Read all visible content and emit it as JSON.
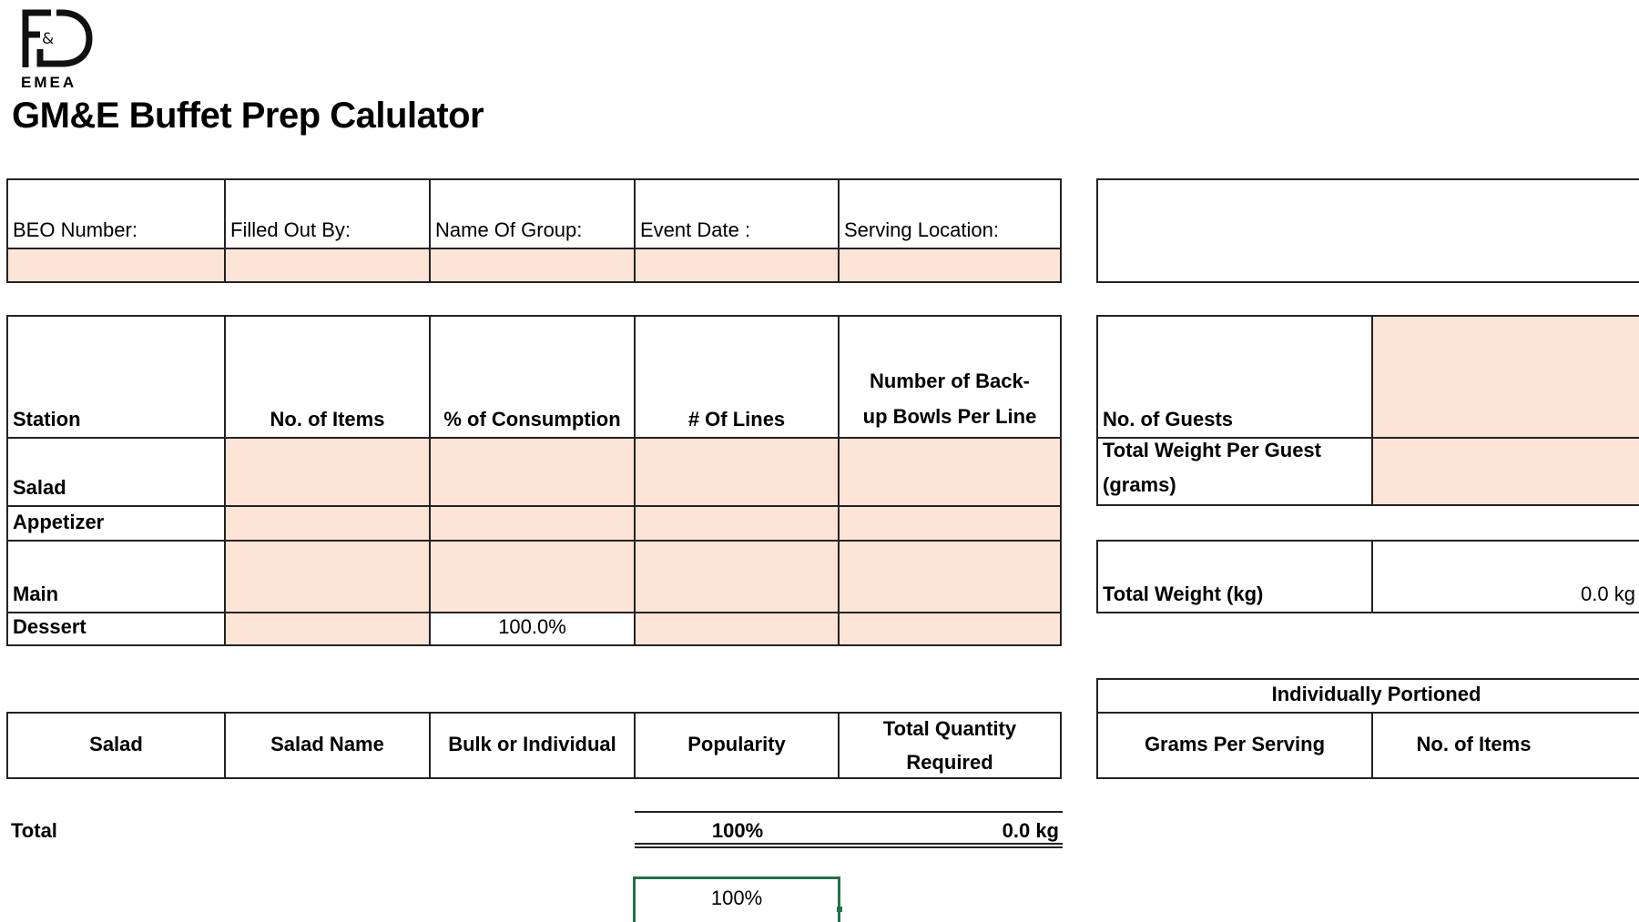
{
  "logo": {
    "text": "F&D",
    "sub": "EMEA"
  },
  "title": "GM&E Buffet Prep Calulator",
  "event_info": {
    "labels": [
      "BEO Number:",
      "Filled Out By:",
      "Name Of Group:",
      "Event Date :",
      "Serving Location:"
    ],
    "values": [
      "",
      "",
      "",
      "",
      ""
    ]
  },
  "stations": {
    "headers": [
      "Station",
      "No. of Items",
      "% of Consumption",
      "# Of Lines",
      "Number of Back-up Bowls Per Line"
    ],
    "rows": [
      {
        "station": "Salad",
        "items": "",
        "consumption": "",
        "lines": "",
        "bowls": ""
      },
      {
        "station": "Appetizer",
        "items": "",
        "consumption": "",
        "lines": "",
        "bowls": ""
      },
      {
        "station": "Main",
        "items": "",
        "consumption": "",
        "lines": "",
        "bowls": ""
      },
      {
        "station": "Dessert",
        "items": "",
        "consumption": "100.0%",
        "lines": "",
        "bowls": ""
      }
    ]
  },
  "guests": {
    "no_of_guests_label": "No. of Guests",
    "no_of_guests_value": "",
    "weight_per_guest_label": "Total Weight Per Guest (grams)",
    "weight_per_guest_value": "",
    "total_weight_label": "Total Weight (kg)",
    "total_weight_value": "0.0 kg"
  },
  "salad_table": {
    "headers": [
      "Salad",
      "Salad Name",
      "Bulk or Individual",
      "Popularity",
      "Total Quantity Required"
    ]
  },
  "individually_portioned": {
    "title": "Individually Portioned",
    "headers": [
      "Grams Per Serving",
      "No. of Items"
    ]
  },
  "totals": {
    "label": "Total",
    "popularity": "100%",
    "quantity": "0.0 kg",
    "selected_cell": "100%"
  },
  "colors": {
    "input_fill": "#fce4d6",
    "selection": "#217346"
  }
}
